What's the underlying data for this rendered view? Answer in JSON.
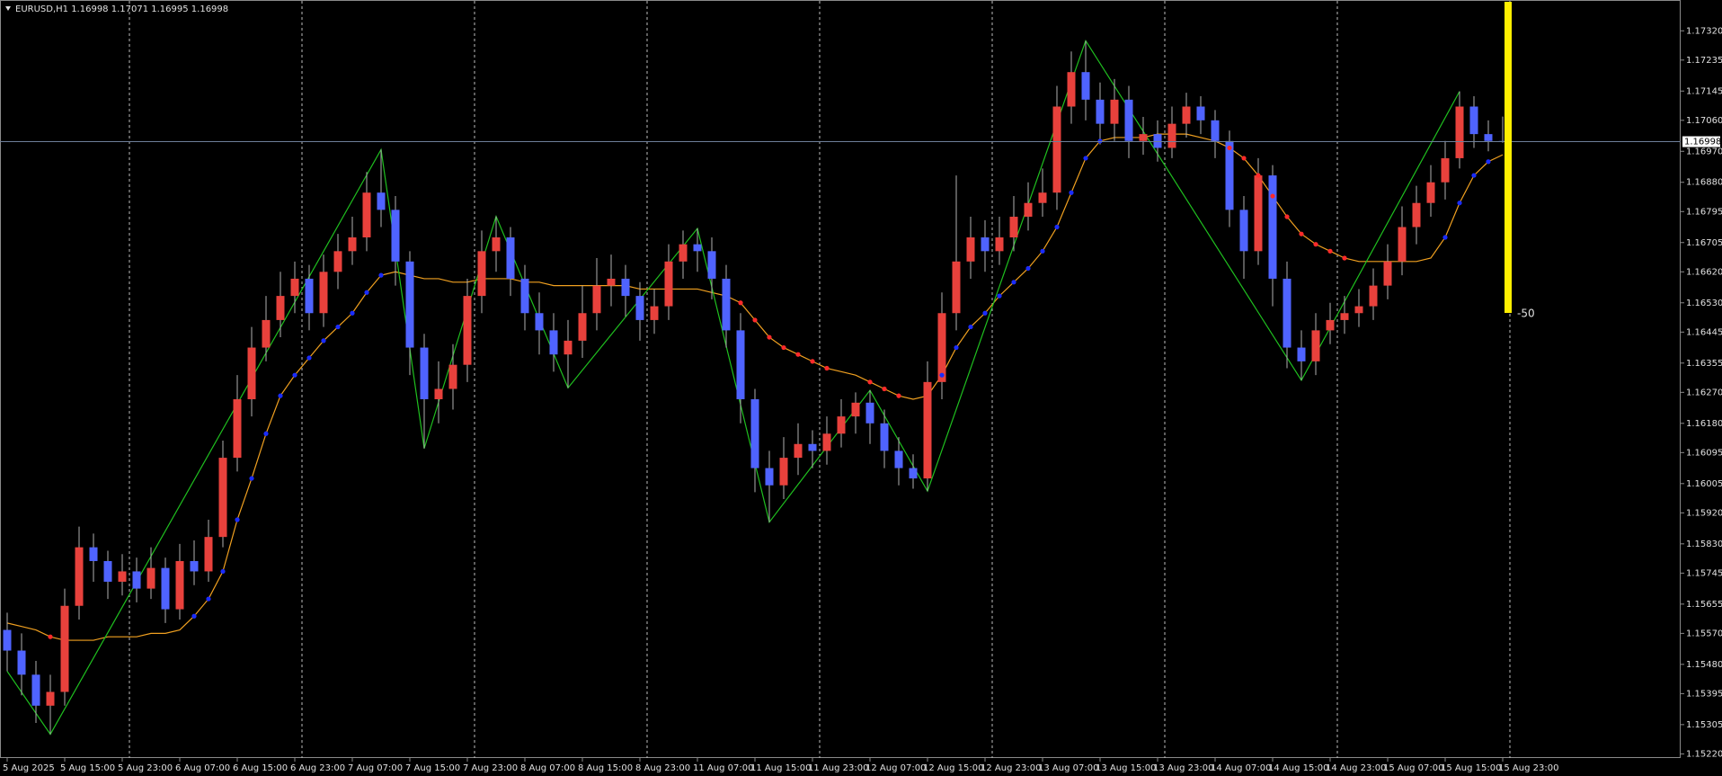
{
  "chart_data": {
    "type": "candlestick",
    "title": "EURUSD,H1 1.16998 1.17071 1.16995 1.16998",
    "categories": [
      "5 Aug 2025",
      null,
      null,
      null,
      "5 Aug 15:00",
      null,
      null,
      null,
      "5 Aug 23:00",
      null,
      null,
      null,
      "6 Aug 07:00",
      null,
      null,
      null,
      "6 Aug 15:00",
      null,
      null,
      null,
      "6 Aug 23:00",
      null,
      null,
      null,
      "7 Aug 07:00",
      null,
      null,
      null,
      "7 Aug 15:00",
      null,
      null,
      null,
      "7 Aug 23:00",
      null,
      null,
      null,
      "8 Aug 07:00",
      null,
      null,
      null,
      "8 Aug 15:00",
      null,
      null,
      null,
      "8 Aug 23:00",
      null,
      null,
      null,
      "11 Aug 07:00",
      null,
      null,
      null,
      "11 Aug 15:00",
      null,
      null,
      null,
      "11 Aug 23:00",
      null,
      null,
      null,
      "12 Aug 07:00",
      null,
      null,
      null,
      "12 Aug 15:00",
      null,
      null,
      null,
      "12 Aug 23:00",
      null,
      null,
      null,
      "13 Aug 07:00",
      null,
      null,
      null,
      "13 Aug 15:00",
      null,
      null,
      null,
      "13 Aug 23:00",
      null,
      null,
      null,
      "14 Aug 07:00",
      null,
      null,
      null,
      "14 Aug 15:00",
      null,
      null,
      null,
      "14 Aug 23:00",
      null,
      null,
      null,
      "15 Aug 07:00",
      null,
      null,
      null,
      "15 Aug 15:00",
      null,
      null,
      null,
      "15 Aug 23:00"
    ],
    "open": [
      1.1558,
      1.1552,
      1.1545,
      1.1536,
      1.154,
      1.1565,
      1.1582,
      1.1578,
      1.1572,
      1.1575,
      1.157,
      1.1576,
      1.1564,
      1.1578,
      1.1575,
      1.1585,
      1.1608,
      1.1625,
      1.164,
      1.1648,
      1.1655,
      1.166,
      1.165,
      1.1662,
      1.1668,
      1.1672,
      1.1685,
      1.168,
      1.1665,
      1.164,
      1.1625,
      1.1628,
      1.1635,
      1.1655,
      1.1668,
      1.1672,
      1.166,
      1.165,
      1.1645,
      1.1638,
      1.1642,
      1.165,
      1.1658,
      1.166,
      1.1655,
      1.1648,
      1.1652,
      1.1665,
      1.167,
      1.1668,
      1.166,
      1.1645,
      1.1625,
      1.1605,
      1.16,
      1.1608,
      1.1612,
      1.161,
      1.1615,
      1.162,
      1.1624,
      1.1618,
      1.161,
      1.1605,
      1.1602,
      1.163,
      1.165,
      1.1665,
      1.1672,
      1.1668,
      1.1672,
      1.1678,
      1.1682,
      1.1685,
      1.171,
      1.172,
      1.1712,
      1.1705,
      1.1712,
      1.17,
      1.1702,
      1.1698,
      1.1705,
      1.171,
      1.1706,
      1.17,
      1.168,
      1.1668,
      1.169,
      1.166,
      1.164,
      1.1636,
      1.1645,
      1.1648,
      1.165,
      1.1652,
      1.1658,
      1.1665,
      1.1675,
      1.1682,
      1.1688,
      1.1695,
      1.171,
      1.1702,
      1.17
    ],
    "high": [
      1.1563,
      1.1557,
      1.1549,
      1.1545,
      1.157,
      1.1588,
      1.1586,
      1.1581,
      1.158,
      1.1579,
      1.1582,
      1.1579,
      1.1583,
      1.1584,
      1.159,
      1.1613,
      1.1632,
      1.1646,
      1.1655,
      1.1662,
      1.1665,
      1.1664,
      1.1667,
      1.1673,
      1.1678,
      1.1691,
      1.16975,
      1.1684,
      1.1668,
      1.1644,
      1.1636,
      1.1641,
      1.166,
      1.1674,
      1.16781,
      1.1675,
      1.1664,
      1.1656,
      1.165,
      1.1648,
      1.1658,
      1.1666,
      1.1667,
      1.1664,
      1.1659,
      1.1657,
      1.167,
      1.1674,
      1.16746,
      1.1672,
      1.1664,
      1.165,
      1.1628,
      1.161,
      1.1614,
      1.1618,
      1.1616,
      1.162,
      1.1625,
      1.1627,
      1.16276,
      1.1622,
      1.1614,
      1.1609,
      1.1636,
      1.1656,
      1.169,
      1.1678,
      1.1677,
      1.1678,
      1.1684,
      1.1688,
      1.1692,
      1.1716,
      1.1726,
      1.17291,
      1.1717,
      1.1718,
      1.1716,
      1.1707,
      1.1706,
      1.171,
      1.1714,
      1.1713,
      1.1709,
      1.1703,
      1.1684,
      1.1695,
      1.1693,
      1.1665,
      1.1645,
      1.165,
      1.1653,
      1.1655,
      1.1657,
      1.1663,
      1.167,
      1.1681,
      1.1687,
      1.1693,
      1.17,
      1.17144,
      1.1713,
      1.1706,
      1.17071
    ],
    "low": [
      1.1546,
      1.1539,
      1.1531,
      1.15277,
      1.1536,
      1.1561,
      1.1572,
      1.1567,
      1.1568,
      1.1566,
      1.1567,
      1.156,
      1.1561,
      1.1571,
      1.1572,
      1.1582,
      1.1604,
      1.162,
      1.1636,
      1.1643,
      1.165,
      1.1645,
      1.1646,
      1.1657,
      1.1664,
      1.1668,
      1.1675,
      1.1658,
      1.1632,
      1.16107,
      1.1618,
      1.1622,
      1.163,
      1.165,
      1.1662,
      1.1655,
      1.1645,
      1.1638,
      1.1633,
      1.16283,
      1.1637,
      1.1645,
      1.1652,
      1.1649,
      1.1642,
      1.1644,
      1.1648,
      1.166,
      1.1662,
      1.1654,
      1.164,
      1.1618,
      1.1598,
      1.15893,
      1.1596,
      1.1603,
      1.1605,
      1.1606,
      1.1611,
      1.1615,
      1.1612,
      1.1605,
      1.16,
      1.1599,
      1.15983,
      1.1625,
      1.1645,
      1.166,
      1.1662,
      1.1664,
      1.1668,
      1.1674,
      1.1678,
      1.168,
      1.1705,
      1.1706,
      1.1699,
      1.17,
      1.1695,
      1.1696,
      1.1694,
      1.1695,
      1.1701,
      1.1702,
      1.1695,
      1.1675,
      1.166,
      1.1664,
      1.1652,
      1.1634,
      1.16305,
      1.1632,
      1.1641,
      1.1644,
      1.1646,
      1.1648,
      1.1654,
      1.1661,
      1.167,
      1.1678,
      1.1683,
      1.1692,
      1.1698,
      1.1697,
      1.16995
    ],
    "close": [
      1.1552,
      1.1545,
      1.1536,
      1.154,
      1.1565,
      1.1582,
      1.1578,
      1.1572,
      1.1575,
      1.157,
      1.1576,
      1.1564,
      1.1578,
      1.1575,
      1.1585,
      1.1608,
      1.1625,
      1.164,
      1.1648,
      1.1655,
      1.166,
      1.165,
      1.1662,
      1.1668,
      1.1672,
      1.1685,
      1.168,
      1.1665,
      1.164,
      1.1625,
      1.1628,
      1.1635,
      1.1655,
      1.1668,
      1.1672,
      1.166,
      1.165,
      1.1645,
      1.1638,
      1.1642,
      1.165,
      1.1658,
      1.166,
      1.1655,
      1.1648,
      1.1652,
      1.1665,
      1.167,
      1.1668,
      1.166,
      1.1645,
      1.1625,
      1.1605,
      1.16,
      1.1608,
      1.1612,
      1.161,
      1.1615,
      1.162,
      1.1624,
      1.1618,
      1.161,
      1.1605,
      1.1602,
      1.163,
      1.165,
      1.1665,
      1.1672,
      1.1668,
      1.1672,
      1.1678,
      1.1682,
      1.1685,
      1.171,
      1.172,
      1.1712,
      1.1705,
      1.1712,
      1.17,
      1.1702,
      1.1698,
      1.1705,
      1.171,
      1.1706,
      1.17,
      1.168,
      1.1668,
      1.169,
      1.166,
      1.164,
      1.1636,
      1.1645,
      1.1648,
      1.165,
      1.1652,
      1.1658,
      1.1665,
      1.1675,
      1.1682,
      1.1688,
      1.1695,
      1.171,
      1.1702,
      1.17,
      1.16998
    ],
    "up_color": "#e8413c",
    "down_color": "#4f63ff",
    "ylim": [
      1.15208,
      1.17399
    ],
    "yticks": [
      {
        "value": 1.1732,
        "label": "1.17320"
      },
      1.17235,
      1.17145,
      {
        "value": 1.1706,
        "label": "1.17060"
      },
      {
        "value": 1.1697,
        "label": "1.16970"
      },
      {
        "value": 1.1688,
        "label": "1.16880"
      },
      1.16795,
      1.16705,
      {
        "value": 1.1662,
        "label": "1.16620"
      },
      {
        "value": 1.1653,
        "label": "1.16530"
      },
      1.16445,
      1.16355,
      {
        "value": 1.1627,
        "label": "1.16270"
      },
      {
        "value": 1.1618,
        "label": "1.16180"
      },
      1.16095,
      1.16005,
      {
        "value": 1.1592,
        "label": "1.15920"
      },
      {
        "value": 1.1583,
        "label": "1.15830"
      },
      1.15745,
      1.15655,
      {
        "value": 1.1557,
        "label": "1.15570"
      },
      {
        "value": 1.1548,
        "label": "1.15480"
      },
      1.15395,
      1.15305,
      {
        "value": 1.1522,
        "label": "1.15220"
      }
    ],
    "current_price": 1.16998,
    "period_separators": true,
    "ma": {
      "color": "#f0a020",
      "values": [
        1.156,
        1.1559,
        1.1558,
        1.1556,
        1.1555,
        1.1555,
        1.1555,
        1.1556,
        1.1556,
        1.1556,
        1.1557,
        1.1557,
        1.1558,
        1.1562,
        1.1567,
        1.1575,
        1.159,
        1.1602,
        1.1615,
        1.1626,
        1.1632,
        1.1637,
        1.1642,
        1.1646,
        1.165,
        1.1656,
        1.1661,
        1.1662,
        1.1661,
        1.166,
        1.166,
        1.1659,
        1.1659,
        1.166,
        1.166,
        1.166,
        1.1659,
        1.1659,
        1.1658,
        1.1658,
        1.1658,
        1.1658,
        1.1658,
        1.1658,
        1.1657,
        1.1657,
        1.1657,
        1.1657,
        1.1657,
        1.1656,
        1.1655,
        1.1653,
        1.1648,
        1.1643,
        1.164,
        1.1638,
        1.1636,
        1.1634,
        1.1633,
        1.1632,
        1.163,
        1.1628,
        1.1626,
        1.1625,
        1.1626,
        1.1632,
        1.164,
        1.1646,
        1.165,
        1.1655,
        1.1659,
        1.1663,
        1.1668,
        1.1675,
        1.1685,
        1.1695,
        1.17,
        1.1701,
        1.1701,
        1.1701,
        1.1702,
        1.1702,
        1.1702,
        1.1701,
        1.17,
        1.1698,
        1.1695,
        1.169,
        1.1684,
        1.1678,
        1.1673,
        1.167,
        1.1668,
        1.1666,
        1.1665,
        1.1665,
        1.1665,
        1.1665,
        1.1665,
        1.1666,
        1.1672,
        1.1682,
        1.169,
        1.1694,
        1.1696
      ]
    },
    "zigzag": {
      "color": "#1fbf1f",
      "x": [
        0,
        3,
        26,
        29,
        34,
        39,
        48,
        53,
        60,
        64,
        75,
        90,
        101
      ],
      "values": [
        1.1546,
        1.15277,
        1.16975,
        1.16107,
        1.16781,
        1.16283,
        1.16746,
        1.15893,
        1.16276,
        1.15983,
        1.17291,
        1.16305,
        1.17144
      ]
    },
    "indicator_label": "-50"
  }
}
